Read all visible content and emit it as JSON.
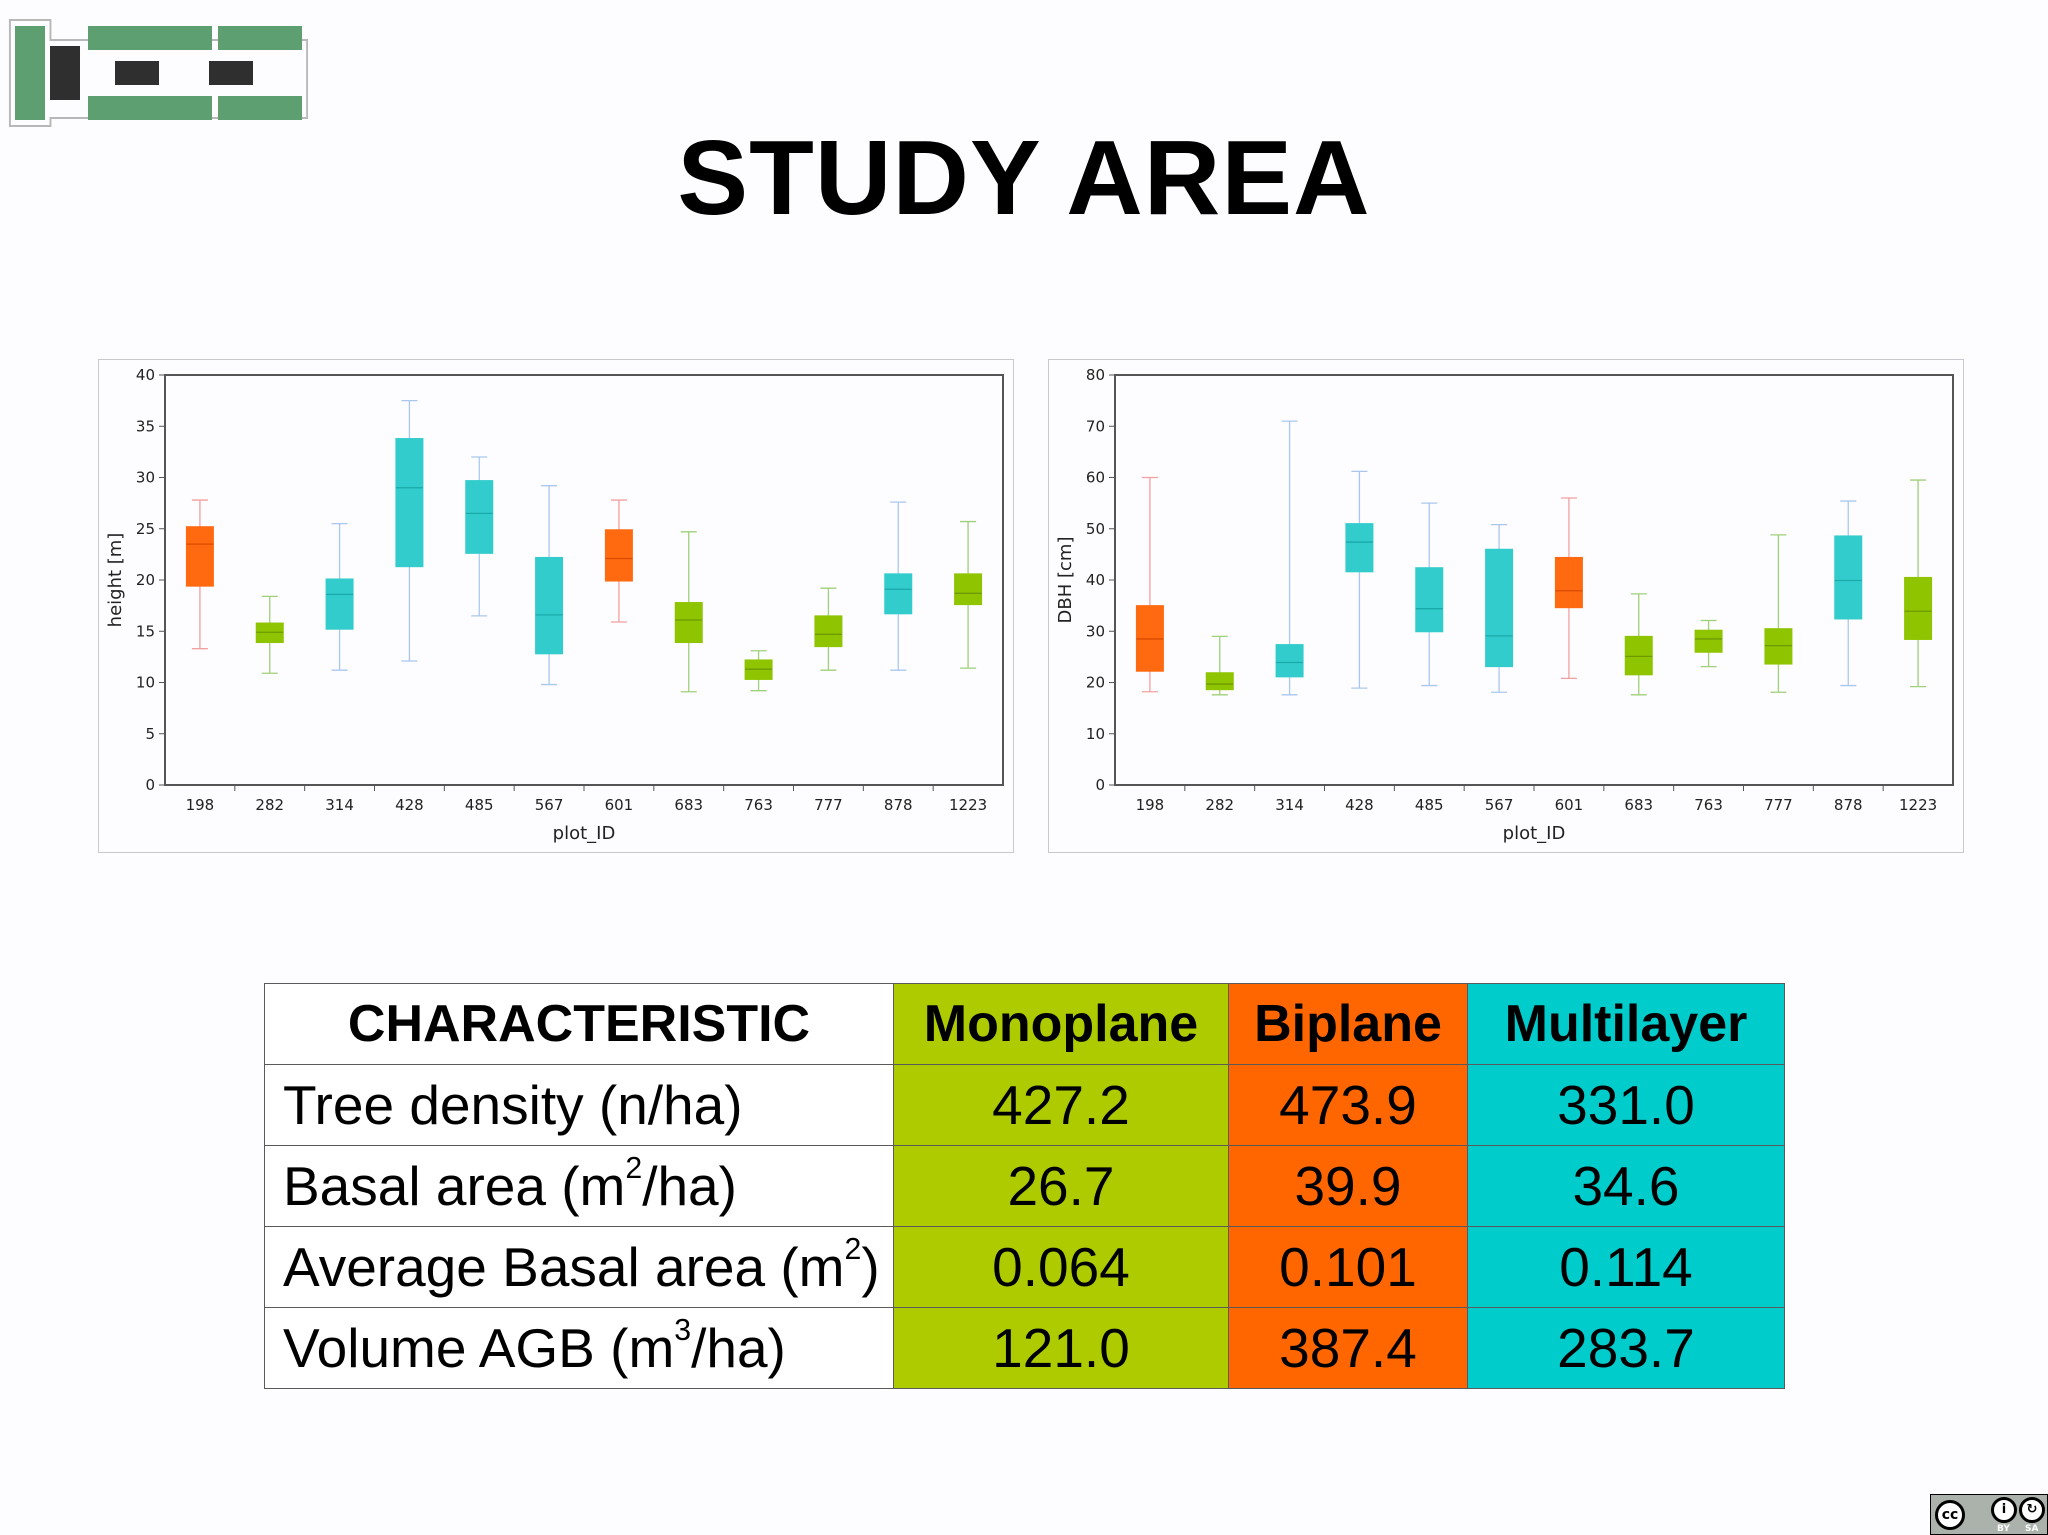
{
  "page": {
    "title": "STUDY AREA"
  },
  "colors": {
    "monoplane": "#aecb00",
    "biplane": "#ff6600",
    "multilayer": "#00cccc",
    "logo_green": "#5e9f71",
    "logo_dark": "#2f2f2f",
    "box_mono": "#8fc400",
    "box_bi": "#ff6a10",
    "box_multi": "#33cccc"
  },
  "icons": {
    "logo": "heg-logo",
    "license": "cc-by-sa-icon"
  },
  "license": {
    "by": "BY",
    "sa": "SA"
  },
  "chart_data": [
    {
      "type": "box",
      "xlabel": "plot_ID",
      "ylabel": "height [m]",
      "ylim": [
        0,
        40
      ],
      "yticks": [
        0,
        5,
        10,
        15,
        20,
        25,
        30,
        35,
        40
      ],
      "categories": [
        "198",
        "282",
        "314",
        "428",
        "485",
        "567",
        "601",
        "683",
        "763",
        "777",
        "878",
        "1223"
      ],
      "series": [
        {
          "plot": "198",
          "type": "Biplane",
          "min": 13.3,
          "q1": 19.4,
          "median": 23.5,
          "q3": 25.2,
          "max": 27.8
        },
        {
          "plot": "282",
          "type": "Monoplane",
          "min": 10.9,
          "q1": 13.9,
          "median": 14.9,
          "q3": 15.8,
          "max": 18.4
        },
        {
          "plot": "314",
          "type": "Multilayer",
          "min": 11.2,
          "q1": 15.2,
          "median": 18.6,
          "q3": 20.1,
          "max": 25.5
        },
        {
          "plot": "428",
          "type": "Multilayer",
          "min": 12.1,
          "q1": 21.3,
          "median": 29.0,
          "q3": 33.8,
          "max": 37.5
        },
        {
          "plot": "485",
          "type": "Multilayer",
          "min": 16.5,
          "q1": 22.6,
          "median": 26.5,
          "q3": 29.7,
          "max": 32.0
        },
        {
          "plot": "567",
          "type": "Multilayer",
          "min": 9.8,
          "q1": 12.8,
          "median": 16.6,
          "q3": 22.2,
          "max": 29.2
        },
        {
          "plot": "601",
          "type": "Biplane",
          "min": 15.9,
          "q1": 19.9,
          "median": 22.1,
          "q3": 24.9,
          "max": 27.8
        },
        {
          "plot": "683",
          "type": "Monoplane",
          "min": 9.1,
          "q1": 13.9,
          "median": 16.1,
          "q3": 17.8,
          "max": 24.7
        },
        {
          "plot": "763",
          "type": "Monoplane",
          "min": 9.2,
          "q1": 10.3,
          "median": 11.3,
          "q3": 12.2,
          "max": 13.1
        },
        {
          "plot": "777",
          "type": "Monoplane",
          "min": 11.2,
          "q1": 13.5,
          "median": 14.7,
          "q3": 16.5,
          "max": 19.2
        },
        {
          "plot": "878",
          "type": "Multilayer",
          "min": 11.2,
          "q1": 16.7,
          "median": 19.1,
          "q3": 20.6,
          "max": 27.6
        },
        {
          "plot": "1223",
          "type": "Monoplane",
          "min": 11.4,
          "q1": 17.6,
          "median": 18.7,
          "q3": 20.6,
          "max": 25.7
        }
      ]
    },
    {
      "type": "box",
      "xlabel": "plot_ID",
      "ylabel": "DBH [cm]",
      "ylim": [
        0,
        80
      ],
      "yticks": [
        0,
        10,
        20,
        30,
        40,
        50,
        60,
        70,
        80
      ],
      "categories": [
        "198",
        "282",
        "314",
        "428",
        "485",
        "567",
        "601",
        "683",
        "763",
        "777",
        "878",
        "1223"
      ],
      "series": [
        {
          "plot": "198",
          "type": "Biplane",
          "min": 18.2,
          "q1": 22.2,
          "median": 28.5,
          "q3": 35.0,
          "max": 60.0
        },
        {
          "plot": "282",
          "type": "Monoplane",
          "min": 17.6,
          "q1": 18.6,
          "median": 19.7,
          "q3": 21.9,
          "max": 29.0
        },
        {
          "plot": "314",
          "type": "Multilayer",
          "min": 17.6,
          "q1": 21.1,
          "median": 23.9,
          "q3": 27.4,
          "max": 71.0
        },
        {
          "plot": "428",
          "type": "Multilayer",
          "min": 18.9,
          "q1": 41.6,
          "median": 47.4,
          "q3": 51.0,
          "max": 61.2
        },
        {
          "plot": "485",
          "type": "Multilayer",
          "min": 19.4,
          "q1": 29.9,
          "median": 34.4,
          "q3": 42.4,
          "max": 55.0
        },
        {
          "plot": "567",
          "type": "Multilayer",
          "min": 18.1,
          "q1": 23.1,
          "median": 29.1,
          "q3": 46.0,
          "max": 50.8
        },
        {
          "plot": "601",
          "type": "Biplane",
          "min": 20.8,
          "q1": 34.6,
          "median": 37.9,
          "q3": 44.4,
          "max": 56.0
        },
        {
          "plot": "683",
          "type": "Monoplane",
          "min": 17.6,
          "q1": 21.5,
          "median": 25.1,
          "q3": 29.0,
          "max": 37.3
        },
        {
          "plot": "763",
          "type": "Monoplane",
          "min": 23.1,
          "q1": 25.9,
          "median": 28.5,
          "q3": 30.2,
          "max": 32.1
        },
        {
          "plot": "777",
          "type": "Monoplane",
          "min": 18.1,
          "q1": 23.6,
          "median": 27.2,
          "q3": 30.5,
          "max": 48.8
        },
        {
          "plot": "878",
          "type": "Multilayer",
          "min": 19.4,
          "q1": 32.4,
          "median": 39.9,
          "q3": 48.6,
          "max": 55.4
        },
        {
          "plot": "1223",
          "type": "Monoplane",
          "min": 19.2,
          "q1": 28.4,
          "median": 33.9,
          "q3": 40.5,
          "max": 59.5
        }
      ]
    }
  ],
  "table": {
    "header": {
      "characteristic": "CHARACTERISTIC",
      "monoplane": "Monoplane",
      "biplane": "Biplane",
      "multilayer": "Multilayer"
    },
    "rows": [
      {
        "label": "Tree density (n/ha)",
        "values": [
          "427.2",
          "473.9",
          "331.0"
        ]
      },
      {
        "label_pre": "Basal area (m",
        "label_sup": "2",
        "label_post": "/ha)",
        "values": [
          "26.7",
          "39.9",
          "34.6"
        ]
      },
      {
        "label_pre": "Average Basal area (m",
        "label_sup": "2",
        "label_post": ")",
        "values": [
          "0.064",
          "0.101",
          "0.114"
        ]
      },
      {
        "label_pre": "Volume AGB (m",
        "label_sup": "3",
        "label_post": "/ha)",
        "values": [
          "121.0",
          "387.4",
          "283.7"
        ]
      }
    ]
  }
}
